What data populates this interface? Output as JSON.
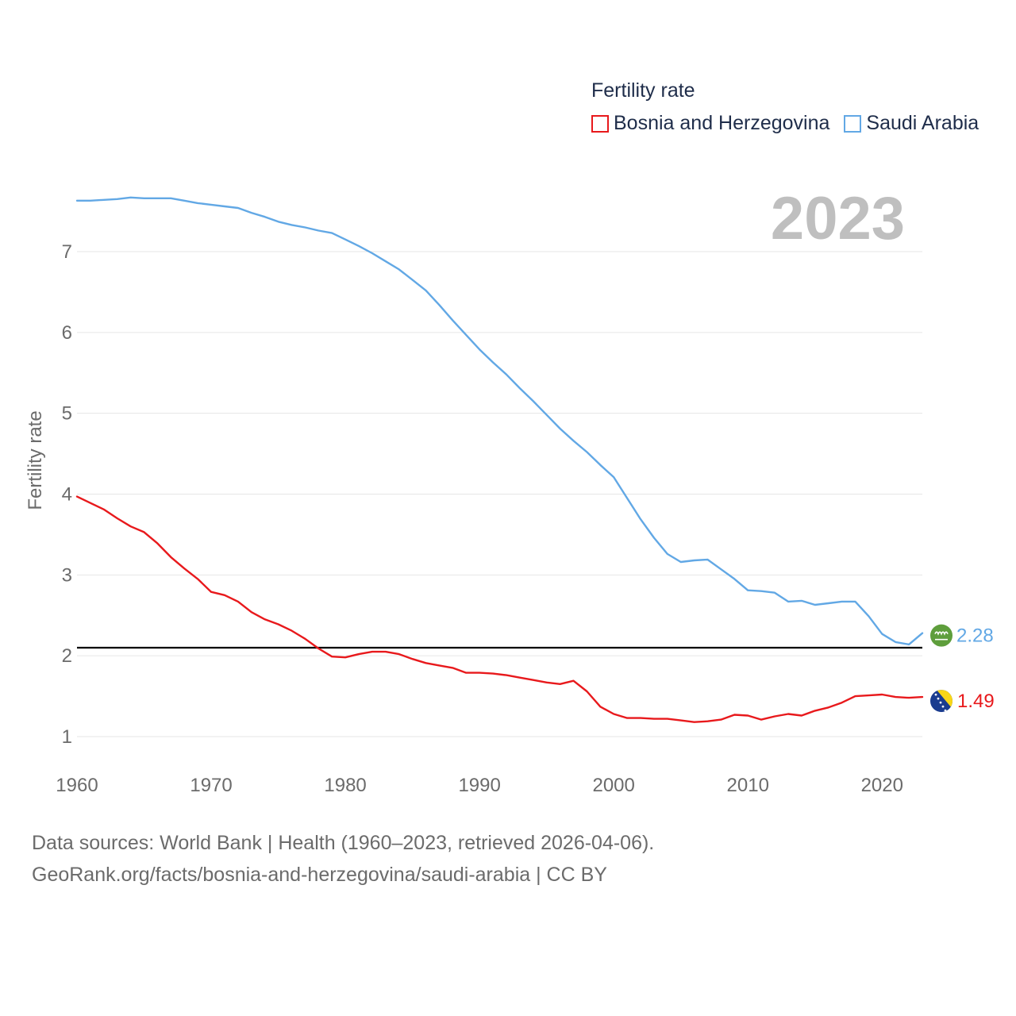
{
  "legend": {
    "title": "Fertility rate",
    "items": [
      {
        "label": "Bosnia and Herzegovina",
        "color": "#e8191c"
      },
      {
        "label": "Saudi Arabia",
        "color": "#62a8e5"
      }
    ]
  },
  "year_display": "2023",
  "footer": {
    "line1": "Data sources: World Bank | Health (1960–2023, retrieved 2026-04-06).",
    "line2": "GeoRank.org/facts/bosnia-and-herzegovina/saudi-arabia | CC BY"
  },
  "chart_data": {
    "type": "line",
    "title": "Fertility rate",
    "xlabel": "",
    "ylabel": "Fertility rate",
    "xlim": [
      1960,
      2023
    ],
    "ylim": [
      0.6,
      7.6
    ],
    "x_ticks": [
      1960,
      1970,
      1980,
      1990,
      2000,
      2010,
      2020
    ],
    "y_ticks": [
      1,
      2,
      3,
      4,
      5,
      6,
      7
    ],
    "reference_line": 2.1,
    "x": [
      1960,
      1961,
      1962,
      1963,
      1964,
      1965,
      1966,
      1967,
      1968,
      1969,
      1970,
      1971,
      1972,
      1973,
      1974,
      1975,
      1976,
      1977,
      1978,
      1979,
      1980,
      1981,
      1982,
      1983,
      1984,
      1985,
      1986,
      1987,
      1988,
      1989,
      1990,
      1991,
      1992,
      1993,
      1994,
      1995,
      1996,
      1997,
      1998,
      1999,
      2000,
      2001,
      2002,
      2003,
      2004,
      2005,
      2006,
      2007,
      2008,
      2009,
      2010,
      2011,
      2012,
      2013,
      2014,
      2015,
      2016,
      2017,
      2018,
      2019,
      2020,
      2021,
      2022,
      2023
    ],
    "series": [
      {
        "name": "Bosnia and Herzegovina",
        "color": "#e8191c",
        "end_label": "1.49",
        "values": [
          3.97,
          3.89,
          3.81,
          3.7,
          3.6,
          3.53,
          3.39,
          3.22,
          3.08,
          2.95,
          2.79,
          2.75,
          2.67,
          2.54,
          2.45,
          2.39,
          2.31,
          2.21,
          2.09,
          1.99,
          1.98,
          2.02,
          2.05,
          2.05,
          2.02,
          1.96,
          1.91,
          1.88,
          1.85,
          1.79,
          1.79,
          1.78,
          1.76,
          1.73,
          1.7,
          1.67,
          1.65,
          1.69,
          1.56,
          1.37,
          1.28,
          1.23,
          1.23,
          1.22,
          1.22,
          1.2,
          1.18,
          1.19,
          1.21,
          1.27,
          1.26,
          1.21,
          1.25,
          1.28,
          1.26,
          1.32,
          1.36,
          1.42,
          1.5,
          1.51,
          1.52,
          1.49,
          1.48,
          1.49
        ]
      },
      {
        "name": "Saudi Arabia",
        "color": "#62a8e5",
        "end_label": "2.28",
        "values": [
          7.63,
          7.63,
          7.64,
          7.65,
          7.67,
          7.66,
          7.66,
          7.66,
          7.63,
          7.6,
          7.58,
          7.56,
          7.54,
          7.48,
          7.43,
          7.37,
          7.33,
          7.3,
          7.26,
          7.23,
          7.15,
          7.07,
          6.98,
          6.88,
          6.78,
          6.65,
          6.52,
          6.34,
          6.15,
          5.97,
          5.79,
          5.63,
          5.48,
          5.31,
          5.15,
          4.98,
          4.81,
          4.66,
          4.52,
          4.36,
          4.21,
          3.95,
          3.69,
          3.46,
          3.26,
          3.16,
          3.18,
          3.19,
          3.07,
          2.95,
          2.81,
          2.8,
          2.78,
          2.67,
          2.68,
          2.63,
          2.65,
          2.67,
          2.67,
          2.49,
          2.27,
          2.17,
          2.14,
          2.28
        ]
      }
    ]
  }
}
